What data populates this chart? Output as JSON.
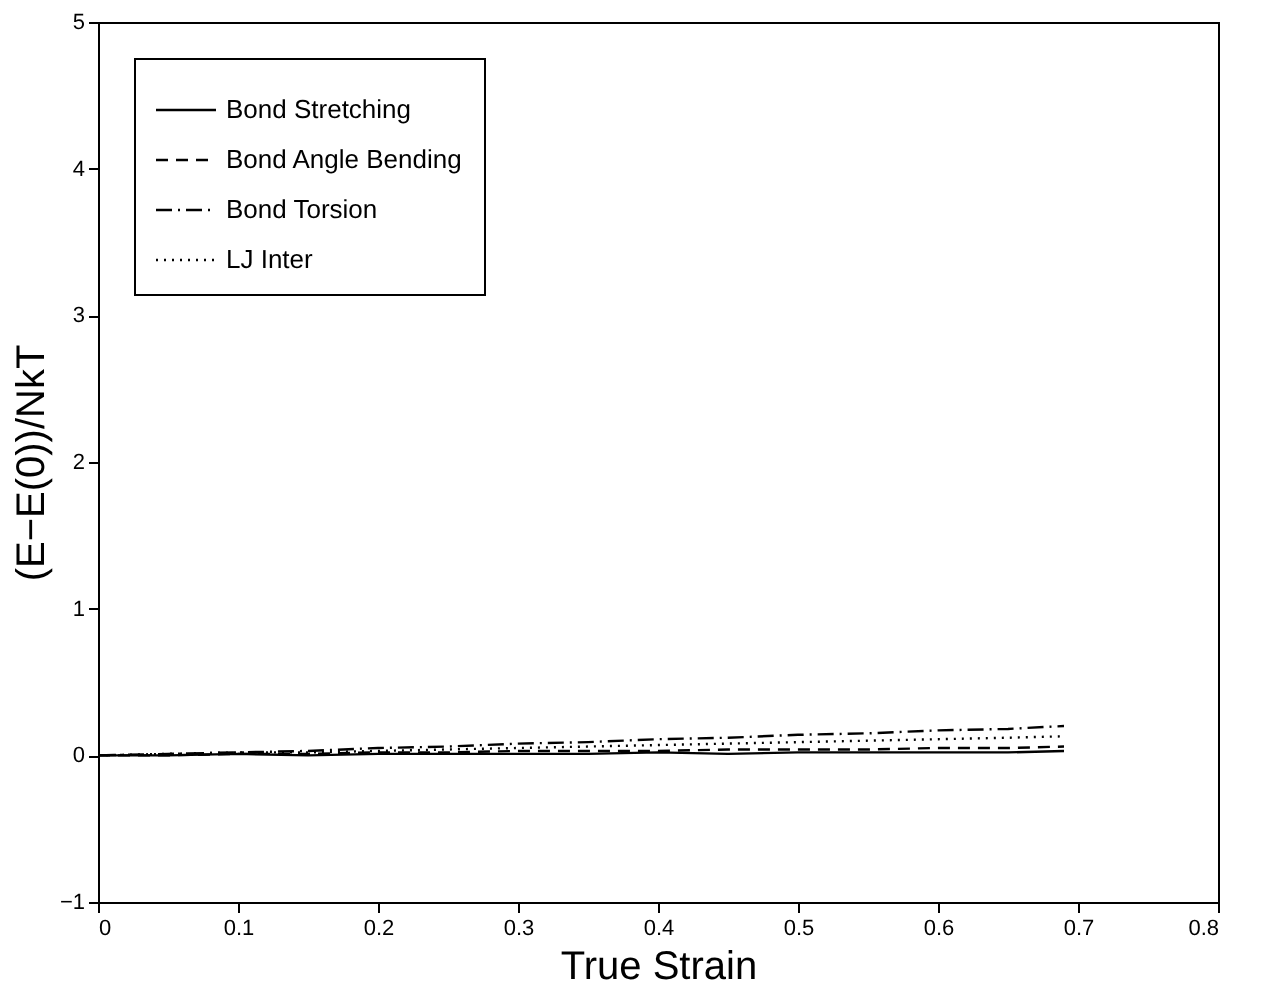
{
  "chart_data": {
    "type": "line",
    "xlabel": "True Strain",
    "ylabel": "(E−E(0))/NkT",
    "xlim": [
      0,
      0.8
    ],
    "xticks": [
      0,
      0.1,
      0.2,
      0.3,
      0.4,
      0.5,
      0.6,
      0.7,
      0.8
    ],
    "ylim": [
      -1,
      5
    ],
    "yticks": [
      -1,
      0,
      1,
      2,
      3,
      4,
      5
    ],
    "x": [
      0,
      0.05,
      0.1,
      0.15,
      0.2,
      0.25,
      0.3,
      0.35,
      0.4,
      0.45,
      0.5,
      0.55,
      0.6,
      0.65,
      0.69
    ],
    "legend": "top left",
    "grid": false,
    "series": [
      {
        "name": "Bond Stretching",
        "color": "#000000",
        "line_style": "solid",
        "values": [
          0,
          0.0,
          0.01,
          0.0,
          0.01,
          0.01,
          0.01,
          0.01,
          0.02,
          0.01,
          0.02,
          0.02,
          0.02,
          0.02,
          0.03
        ]
      },
      {
        "name": "Bond Angle Bending",
        "color": "#000000",
        "line_style": "dashed",
        "values": [
          0,
          0.0,
          0.01,
          0.01,
          0.02,
          0.02,
          0.03,
          0.03,
          0.03,
          0.04,
          0.04,
          0.04,
          0.05,
          0.05,
          0.06
        ]
      },
      {
        "name": "Bond Torsion",
        "color": "#000000",
        "line_style": "dashdot",
        "values": [
          0,
          0.01,
          0.02,
          0.03,
          0.05,
          0.06,
          0.08,
          0.09,
          0.11,
          0.12,
          0.14,
          0.15,
          0.17,
          0.18,
          0.2
        ]
      },
      {
        "name": "LJ Inter",
        "color": "#000000",
        "line_style": "dotted",
        "values": [
          0,
          0.01,
          0.02,
          0.02,
          0.03,
          0.04,
          0.05,
          0.06,
          0.07,
          0.08,
          0.09,
          0.1,
          0.11,
          0.12,
          0.13
        ]
      }
    ]
  }
}
